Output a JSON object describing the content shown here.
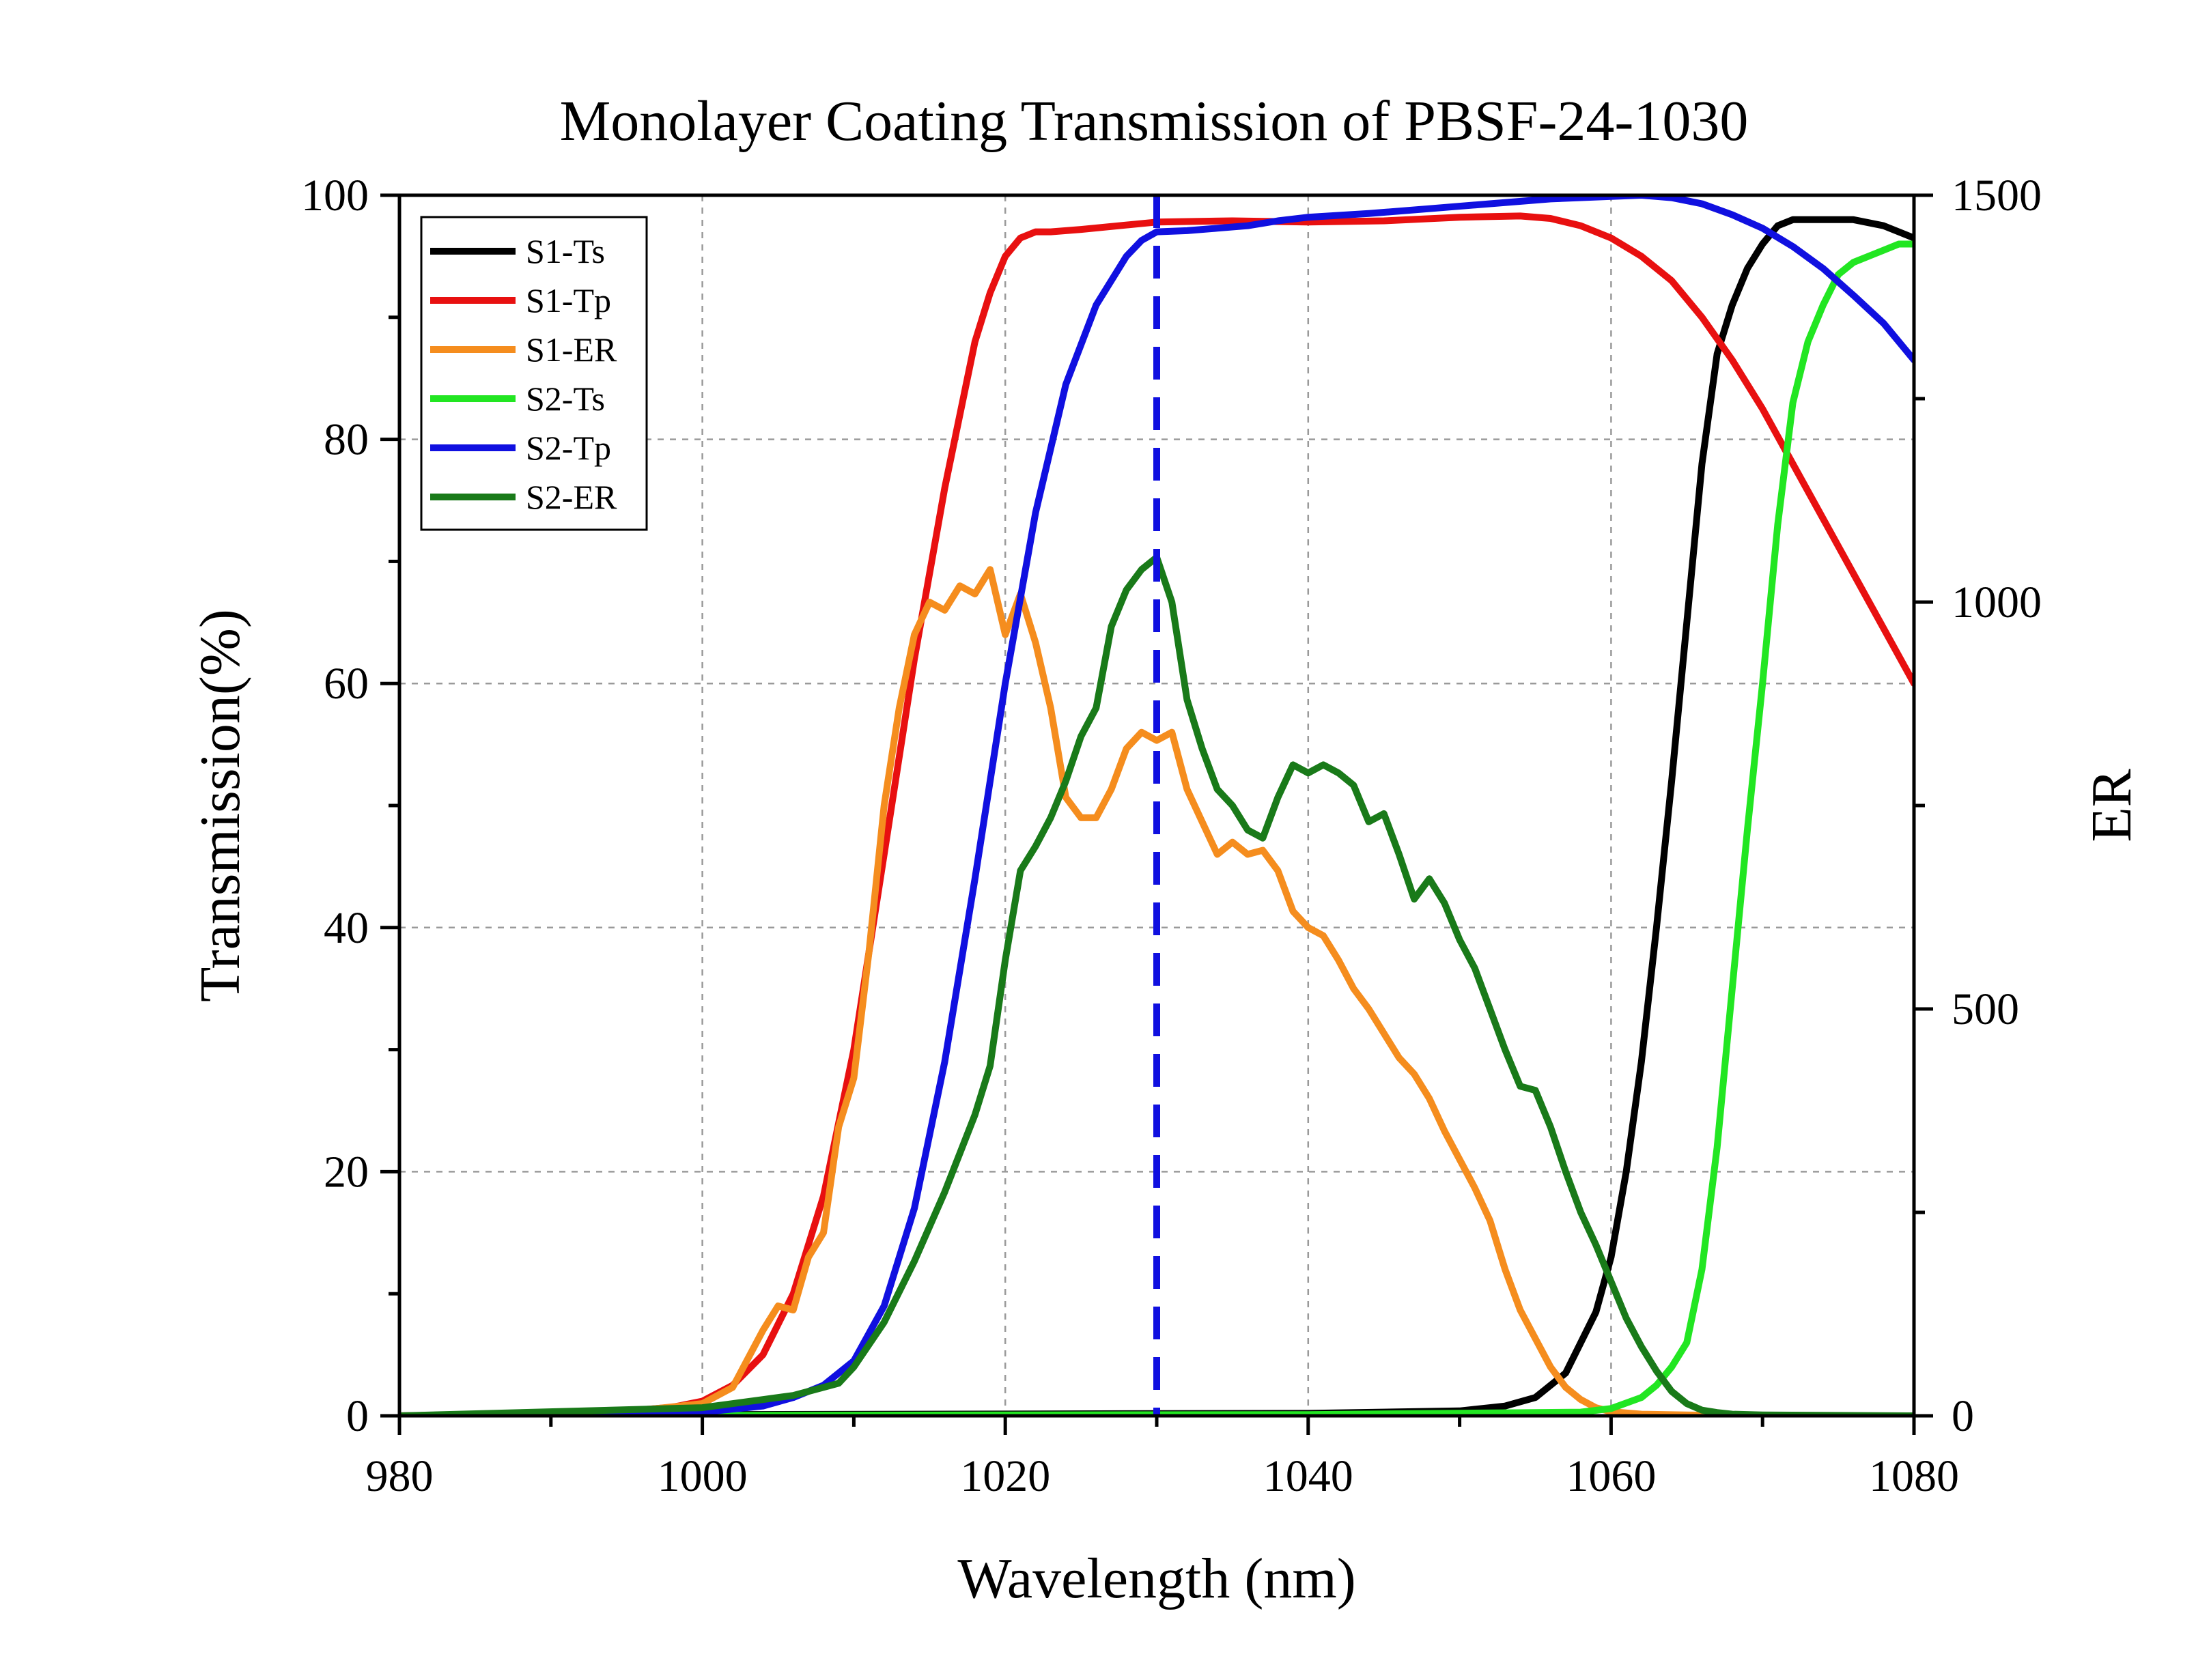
{
  "chart_data": {
    "type": "line",
    "title": "Monolayer Coating Transmission of PBSF-24-1030",
    "xlabel": "Wavelength (nm)",
    "ylabel": "Transmission(%)",
    "y2label": "ER",
    "xlim": [
      980,
      1080
    ],
    "ylim": [
      0,
      100
    ],
    "y2lim": [
      0,
      1500
    ],
    "xticks": [
      980,
      1000,
      1020,
      1040,
      1060,
      1080
    ],
    "yticks": [
      0,
      20,
      40,
      60,
      80,
      100
    ],
    "y2ticks": [
      0,
      500,
      1000,
      1500
    ],
    "grid": true,
    "legend_position": "top-left",
    "reference_line": {
      "x": 1030,
      "color": "#1010e0",
      "style": "dashed"
    },
    "series": [
      {
        "name": "S1-Ts",
        "color": "#000000",
        "axis": "left",
        "x": [
          980,
          1000,
          1040,
          1050,
          1053,
          1055,
          1057,
          1059,
          1060,
          1061,
          1062,
          1063,
          1064,
          1065,
          1066,
          1067,
          1068,
          1069,
          1070,
          1071,
          1072,
          1073,
          1076,
          1078,
          1080
        ],
        "y": [
          0,
          0.1,
          0.2,
          0.4,
          0.8,
          1.5,
          3.5,
          8.5,
          13,
          20,
          29,
          40,
          52,
          65,
          78,
          87,
          91,
          94,
          96,
          97.5,
          98,
          98,
          98,
          97.5,
          96.5
        ]
      },
      {
        "name": "S1-Tp",
        "color": "#e81010",
        "axis": "left",
        "x": [
          980,
          990,
          995,
          998,
          1000,
          1002,
          1004,
          1006,
          1008,
          1010,
          1012,
          1014,
          1016,
          1018,
          1019,
          1020,
          1021,
          1022,
          1023,
          1025,
          1030,
          1035,
          1040,
          1045,
          1050,
          1054,
          1056,
          1058,
          1060,
          1062,
          1064,
          1066,
          1068,
          1070,
          1072,
          1074,
          1076,
          1078,
          1080
        ],
        "y": [
          0,
          0.2,
          0.4,
          0.7,
          1.2,
          2.5,
          5,
          10,
          18,
          30,
          46,
          62,
          76,
          88,
          92,
          95,
          96.5,
          97,
          97,
          97.2,
          97.8,
          97.9,
          97.8,
          97.9,
          98.2,
          98.3,
          98.1,
          97.5,
          96.5,
          95,
          93,
          90,
          86.5,
          82.5,
          78,
          73.5,
          69,
          64.5,
          60
        ]
      },
      {
        "name": "S1-ER",
        "color": "#f58d1e",
        "axis": "right",
        "x": [
          980,
          995,
          1000,
          1002,
          1003,
          1004,
          1005,
          1006,
          1007,
          1008,
          1009,
          1010,
          1011,
          1012,
          1013,
          1014,
          1015,
          1016,
          1017,
          1018,
          1019,
          1020,
          1021,
          1022,
          1023,
          1024,
          1025,
          1026,
          1027,
          1028,
          1029,
          1030,
          1031,
          1032,
          1033,
          1034,
          1035,
          1036,
          1037,
          1038,
          1039,
          1040,
          1041,
          1042,
          1043,
          1044,
          1045,
          1046,
          1047,
          1048,
          1049,
          1050,
          1051,
          1052,
          1053,
          1054,
          1055,
          1056,
          1057,
          1058,
          1059,
          1060,
          1062,
          1065,
          1070,
          1080
        ],
        "y": [
          0,
          5,
          15,
          35,
          70,
          105,
          135,
          130,
          195,
          225,
          355,
          415,
          570,
          750,
          870,
          960,
          1000,
          990,
          1020,
          1010,
          1040,
          960,
          1010,
          950,
          870,
          760,
          735,
          735,
          770,
          820,
          840,
          830,
          840,
          770,
          730,
          690,
          705,
          690,
          695,
          670,
          620,
          600,
          590,
          560,
          525,
          500,
          470,
          440,
          420,
          390,
          350,
          315,
          280,
          240,
          180,
          130,
          95,
          60,
          35,
          20,
          10,
          5,
          2,
          1,
          0,
          0
        ]
      },
      {
        "name": "S2-Ts",
        "color": "#22e622",
        "axis": "left",
        "x": [
          980,
          1040,
          1058,
          1060,
          1062,
          1063,
          1064,
          1065,
          1066,
          1067,
          1068,
          1069,
          1070,
          1071,
          1072,
          1073,
          1074,
          1075,
          1076,
          1077,
          1078,
          1079,
          1080
        ],
        "y": [
          0,
          0.1,
          0.3,
          0.6,
          1.5,
          2.5,
          4,
          6,
          12,
          22,
          35,
          48,
          60,
          73,
          83,
          88,
          91,
          93.5,
          94.5,
          95,
          95.5,
          96,
          96
        ]
      },
      {
        "name": "S2-Tp",
        "color": "#1010e0",
        "axis": "left",
        "x": [
          980,
          995,
          1000,
          1004,
          1006,
          1008,
          1010,
          1012,
          1014,
          1016,
          1018,
          1020,
          1022,
          1024,
          1026,
          1028,
          1029,
          1030,
          1032,
          1034,
          1036,
          1038,
          1040,
          1044,
          1048,
          1052,
          1056,
          1060,
          1062,
          1064,
          1066,
          1068,
          1070,
          1072,
          1074,
          1076,
          1078,
          1080
        ],
        "y": [
          0,
          0.1,
          0.3,
          0.8,
          1.5,
          2.5,
          4.5,
          9,
          17,
          29,
          44,
          60,
          74,
          84.5,
          91,
          95,
          96.3,
          97,
          97.1,
          97.3,
          97.5,
          97.9,
          98.2,
          98.5,
          98.9,
          99.3,
          99.7,
          99.9,
          100,
          99.8,
          99.3,
          98.4,
          97.3,
          95.8,
          94,
          91.8,
          89.5,
          86.5
        ]
      },
      {
        "name": "S2-ER",
        "color": "#197a19",
        "axis": "right",
        "x": [
          980,
          1000,
          1004,
          1006,
          1008,
          1009,
          1010,
          1012,
          1014,
          1016,
          1018,
          1019,
          1020,
          1021,
          1022,
          1023,
          1024,
          1025,
          1026,
          1027,
          1028,
          1029,
          1030,
          1031,
          1032,
          1033,
          1034,
          1035,
          1036,
          1037,
          1038,
          1039,
          1040,
          1041,
          1042,
          1043,
          1044,
          1045,
          1046,
          1047,
          1048,
          1049,
          1050,
          1051,
          1052,
          1053,
          1054,
          1055,
          1056,
          1057,
          1058,
          1059,
          1060,
          1061,
          1062,
          1063,
          1064,
          1065,
          1066,
          1067,
          1068,
          1070,
          1080
        ],
        "y": [
          0,
          10,
          20,
          25,
          35,
          40,
          60,
          115,
          190,
          275,
          370,
          430,
          560,
          670,
          700,
          735,
          780,
          835,
          870,
          970,
          1015,
          1040,
          1055,
          1000,
          880,
          820,
          770,
          750,
          720,
          710,
          760,
          800,
          790,
          800,
          790,
          775,
          730,
          740,
          690,
          635,
          660,
          630,
          585,
          550,
          500,
          450,
          405,
          400,
          355,
          300,
          250,
          210,
          165,
          120,
          85,
          55,
          30,
          15,
          7,
          4,
          2,
          1,
          0
        ]
      }
    ]
  }
}
